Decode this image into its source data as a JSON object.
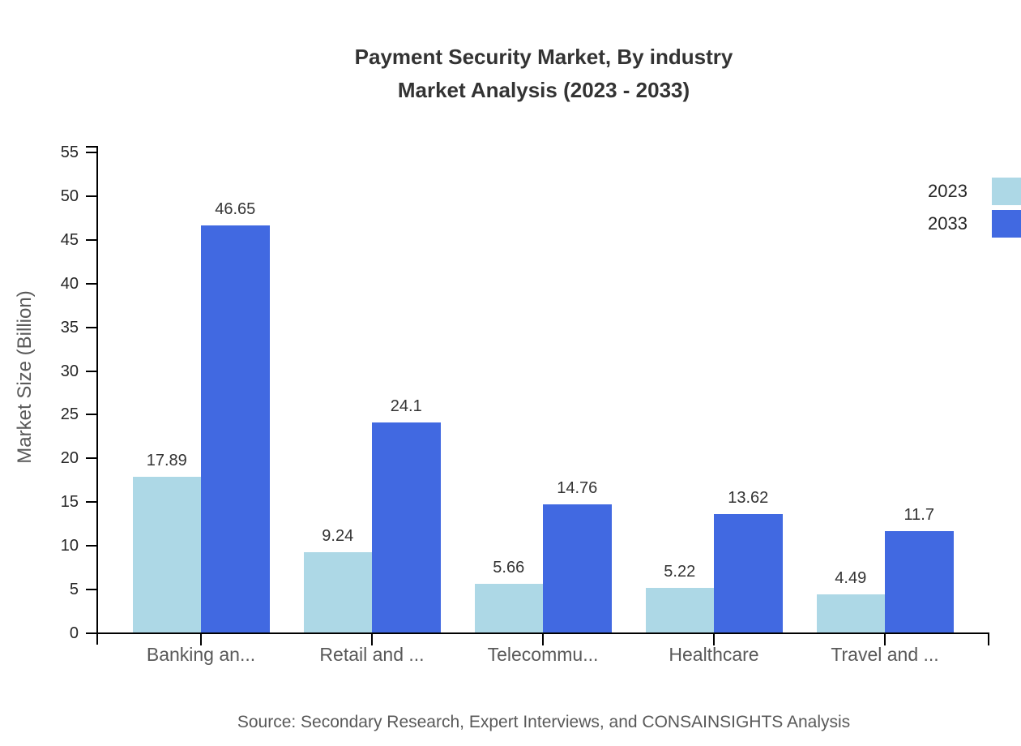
{
  "title": {
    "line1": "Payment Security Market, By industry",
    "line2": "Market Analysis (2023 - 2033)"
  },
  "source": "Source: Secondary Research, Expert Interviews, and CONSAINSIGHTS Analysis",
  "chart_data": {
    "type": "bar",
    "title": "Payment Security Market, By industry Market Analysis (2023 - 2033)",
    "categories": [
      "Banking an...",
      "Retail and ...",
      "Telecommu...",
      "Healthcare",
      "Travel and ..."
    ],
    "series": [
      {
        "name": "2023",
        "color": "#ADD8E6",
        "values": [
          17.89,
          9.24,
          5.66,
          5.22,
          4.49
        ]
      },
      {
        "name": "2033",
        "color": "#4169E1",
        "values": [
          46.65,
          24.1,
          14.76,
          13.62,
          11.7
        ]
      }
    ],
    "xlabel": "",
    "ylabel": "Market Size (Billion)",
    "ylim": [
      0,
      55
    ],
    "ytick_step": 5,
    "ytick_labels": [
      "0",
      "5",
      "10",
      "15",
      "20",
      "25",
      "30",
      "35",
      "40",
      "45",
      "50",
      "55"
    ],
    "legend_position": "top-right",
    "grid": false,
    "value_labels": true,
    "axis_color": "#000000",
    "text_colors": {
      "title": "#333333",
      "tick_labels": "#262626",
      "category_labels": "#595959",
      "value_labels": "#333333",
      "source": "#595959"
    }
  }
}
